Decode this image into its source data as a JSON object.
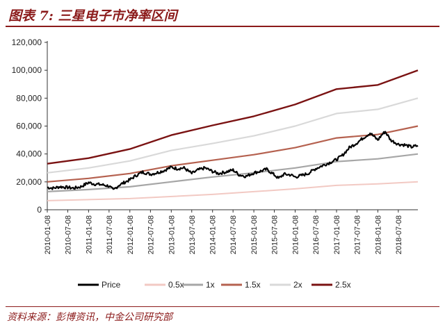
{
  "figure": {
    "title": "图表 7: 三星电子市净率区间",
    "source": "资料来源：彭博资讯，中金公司研究部"
  },
  "chart_data": {
    "type": "line",
    "ylim": [
      0,
      120000
    ],
    "yticks": [
      "0",
      "20,000",
      "40,000",
      "60,000",
      "80,000",
      "100,000",
      "120,000"
    ],
    "ytick_values": [
      0,
      20000,
      40000,
      60000,
      80000,
      100000,
      120000
    ],
    "xlim": [
      "2010-01-08",
      "2018-12-28"
    ],
    "xticks": [
      "2010-01-08",
      "2010-07-08",
      "2011-01-08",
      "2011-07-08",
      "2012-01-08",
      "2012-07-08",
      "2013-01-08",
      "2013-07-08",
      "2014-01-08",
      "2014-07-08",
      "2015-01-08",
      "2015-07-08",
      "2016-01-08",
      "2016-07-08",
      "2017-01-08",
      "2017-07-08",
      "2018-01-08",
      "2018-07-08"
    ],
    "grid": false,
    "legend_position": "bottom",
    "series": [
      {
        "name": "Price",
        "color": "#000000",
        "width": 2.2,
        "x": [
          "2010-01-08",
          "2010-03-01",
          "2010-05-01",
          "2010-07-08",
          "2010-09-01",
          "2010-11-01",
          "2011-01-08",
          "2011-03-01",
          "2011-05-01",
          "2011-07-08",
          "2011-08-15",
          "2011-10-01",
          "2011-12-01",
          "2012-01-08",
          "2012-03-01",
          "2012-05-01",
          "2012-07-08",
          "2012-09-01",
          "2012-11-01",
          "2013-01-08",
          "2013-03-01",
          "2013-05-01",
          "2013-07-08",
          "2013-09-01",
          "2013-11-01",
          "2014-01-08",
          "2014-03-01",
          "2014-05-01",
          "2014-07-08",
          "2014-09-01",
          "2014-11-01",
          "2015-01-08",
          "2015-03-01",
          "2015-05-01",
          "2015-07-08",
          "2015-08-15",
          "2015-10-01",
          "2015-12-01",
          "2016-01-08",
          "2016-03-01",
          "2016-05-01",
          "2016-07-08",
          "2016-09-01",
          "2016-11-01",
          "2017-01-08",
          "2017-03-01",
          "2017-05-01",
          "2017-07-08",
          "2017-09-01",
          "2017-11-01",
          "2018-01-08",
          "2018-02-15",
          "2018-03-15",
          "2018-05-01",
          "2018-07-08",
          "2018-09-01",
          "2018-11-01",
          "2018-12-28"
        ],
        "y": [
          16000,
          15500,
          16500,
          16000,
          15500,
          16500,
          19500,
          18500,
          18000,
          17000,
          14000,
          17500,
          20000,
          21500,
          24500,
          27000,
          25500,
          26500,
          28000,
          30500,
          29500,
          30000,
          26000,
          28500,
          30000,
          27500,
          26000,
          27000,
          28500,
          25000,
          24000,
          26500,
          27500,
          29000,
          25000,
          22500,
          25500,
          25000,
          23500,
          24500,
          26000,
          29500,
          31500,
          33500,
          36000,
          39000,
          44500,
          48000,
          51500,
          55000,
          50000,
          54000,
          56000,
          50000,
          47000,
          46500,
          45000,
          46000
        ]
      },
      {
        "name": "0.5x",
        "color": "#f2c9c3",
        "width": 2,
        "x": [
          "2010-01-08",
          "2012-01-08",
          "2014-01-08",
          "2016-01-08",
          "2017-01-08",
          "2018-01-08",
          "2018-12-28"
        ],
        "y": [
          6500,
          8000,
          11000,
          15000,
          17500,
          18500,
          20000
        ]
      },
      {
        "name": "1x",
        "color": "#a6a6a6",
        "width": 2.2,
        "x": [
          "2010-01-08",
          "2011-01-08",
          "2012-01-08",
          "2013-01-08",
          "2014-01-08",
          "2015-01-08",
          "2016-01-08",
          "2017-01-08",
          "2018-01-08",
          "2018-12-28"
        ],
        "y": [
          13000,
          14500,
          16500,
          20000,
          23500,
          26500,
          30000,
          34500,
          36500,
          40000
        ]
      },
      {
        "name": "1.5x",
        "color": "#b5614f",
        "width": 2.2,
        "x": [
          "2010-01-08",
          "2011-01-08",
          "2012-01-08",
          "2013-01-08",
          "2014-01-08",
          "2015-01-08",
          "2016-01-08",
          "2017-01-08",
          "2018-01-08",
          "2018-12-28"
        ],
        "y": [
          20000,
          22500,
          26000,
          31500,
          35500,
          39500,
          44500,
          51500,
          54000,
          60000
        ]
      },
      {
        "name": "2x",
        "color": "#d9d9d9",
        "width": 2.2,
        "x": [
          "2010-01-08",
          "2011-01-08",
          "2012-01-08",
          "2013-01-08",
          "2014-01-08",
          "2015-01-08",
          "2016-01-08",
          "2017-01-08",
          "2018-01-08",
          "2018-12-28"
        ],
        "y": [
          26500,
          30000,
          35000,
          42500,
          47500,
          53000,
          60000,
          69000,
          72000,
          80000
        ]
      },
      {
        "name": "2.5x",
        "color": "#7a1212",
        "width": 2.4,
        "x": [
          "2010-01-08",
          "2011-01-08",
          "2012-01-08",
          "2013-01-08",
          "2014-01-08",
          "2015-01-08",
          "2016-01-08",
          "2017-01-08",
          "2018-01-08",
          "2018-12-28"
        ],
        "y": [
          33000,
          37000,
          43500,
          53500,
          60500,
          67000,
          75500,
          86500,
          89500,
          100000
        ]
      }
    ]
  }
}
